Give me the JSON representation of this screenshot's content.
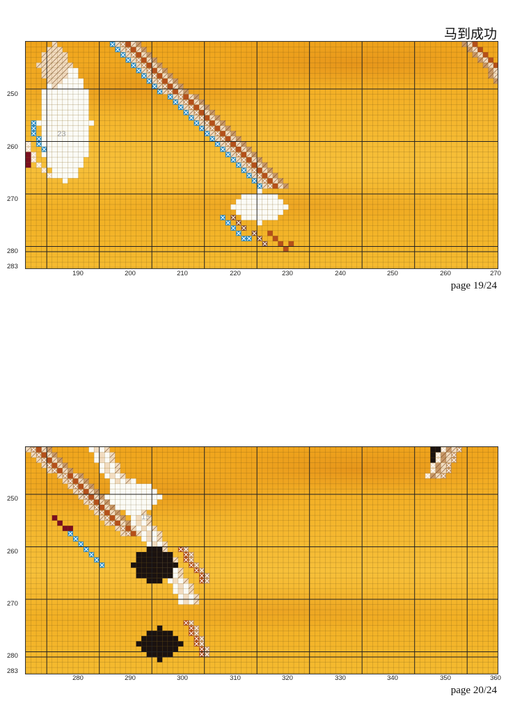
{
  "header": {
    "title": "马到成功"
  },
  "panels": [
    {
      "page_label": "page 19/24",
      "x_ticks": [
        "190",
        "200",
        "210",
        "220",
        "230",
        "240",
        "250",
        "260",
        "270"
      ],
      "y_ticks": [
        "250",
        "260",
        "270",
        "280",
        "283"
      ],
      "symbol_label": "23"
    },
    {
      "page_label": "page 20/24",
      "x_ticks": [
        "280",
        "290",
        "300",
        "310",
        "320",
        "330",
        "340",
        "350",
        "360"
      ],
      "y_ticks": [
        "250",
        "260",
        "270",
        "280",
        "283"
      ],
      "symbol_label": "15"
    }
  ],
  "colors": {
    "fabric_gold": "#f4b42a",
    "deep_orange": "#e88a10",
    "white": "#fbfbf6",
    "beige": "#f2dcc0",
    "tan": "#c89868",
    "rust": "#b5501a",
    "brown": "#8a5230",
    "blue": "#2a8ec8",
    "black": "#1a1210",
    "maroon": "#7a1020"
  }
}
